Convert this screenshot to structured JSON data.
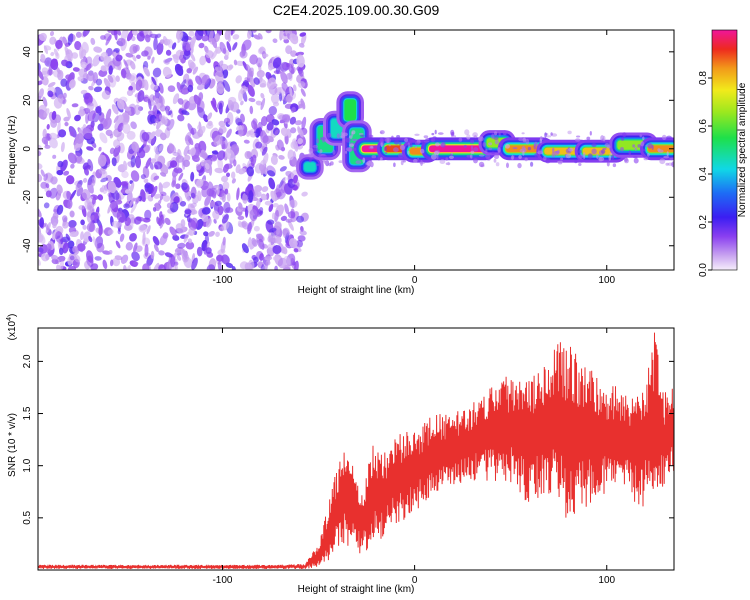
{
  "title": "C2E4.2025.109.00.30.G09",
  "chart_data": [
    {
      "type": "heatmap",
      "xlabel": "Height of straight line (km)",
      "ylabel": "Frequency (Hz)",
      "xlim": [
        -196,
        135
      ],
      "ylim": [
        -50,
        49
      ],
      "x_ticks": [
        -100,
        0,
        100
      ],
      "y_ticks": [
        -40,
        -20,
        0,
        20,
        40
      ],
      "colorbar": {
        "label": "Normalized spectral amplitude",
        "range": [
          0,
          1
        ],
        "ticks": [
          0.0,
          0.2,
          0.4,
          0.6,
          0.8
        ]
      },
      "noise_region_x": [
        -196,
        -57
      ],
      "signal_segments": [
        {
          "x": [
            -57,
            -52
          ],
          "freq": [
            -9,
            -6
          ],
          "amp": 0.45
        },
        {
          "x": [
            -50,
            -43
          ],
          "freq": [
            -1,
            9
          ],
          "amp": 0.5
        },
        {
          "x": [
            -43,
            -36
          ],
          "freq": [
            5,
            12
          ],
          "amp": 0.45
        },
        {
          "x": [
            -36,
            -31
          ],
          "freq": [
            12,
            20
          ],
          "amp": 0.55
        },
        {
          "x": [
            -33,
            -27
          ],
          "freq": [
            -6,
            8
          ],
          "amp": 0.5
        },
        {
          "x": [
            -27,
            -15
          ],
          "freq": [
            -1,
            1
          ],
          "amp": 1.0
        },
        {
          "x": [
            -15,
            -2
          ],
          "freq": [
            -1,
            1
          ],
          "amp": 0.9
        },
        {
          "x": [
            -2,
            8
          ],
          "freq": [
            -2,
            0
          ],
          "amp": 0.85
        },
        {
          "x": [
            8,
            38
          ],
          "freq": [
            -1,
            1
          ],
          "amp": 1.0
        },
        {
          "x": [
            38,
            48
          ],
          "freq": [
            1,
            4
          ],
          "amp": 0.65
        },
        {
          "x": [
            48,
            68
          ],
          "freq": [
            -1,
            1
          ],
          "amp": 0.85
        },
        {
          "x": [
            68,
            88
          ],
          "freq": [
            -2,
            0
          ],
          "amp": 0.8
        },
        {
          "x": [
            88,
            106
          ],
          "freq": [
            -2,
            0
          ],
          "amp": 0.8
        },
        {
          "x": [
            106,
            122
          ],
          "freq": [
            0,
            3
          ],
          "amp": 0.65
        },
        {
          "x": [
            122,
            135
          ],
          "freq": [
            -1,
            1
          ],
          "amp": 0.85
        }
      ]
    },
    {
      "type": "line",
      "xlabel": "Height of straight line (km)",
      "ylabel": "SNR (10 * v/v)",
      "y_multiplier": "(x10",
      "y_multiplier_exp": "4",
      "y_multiplier_close": ")",
      "xlim": [
        -196,
        135
      ],
      "ylim": [
        0,
        2.32
      ],
      "x_ticks": [
        -100,
        0,
        100
      ],
      "y_ticks": [
        0.5,
        1.0,
        1.5,
        2.0
      ],
      "color": "#e8302e",
      "envelope": [
        {
          "x": -196,
          "lo": 0.01,
          "hi": 0.05
        },
        {
          "x": -70,
          "lo": 0.01,
          "hi": 0.05
        },
        {
          "x": -57,
          "lo": 0.01,
          "hi": 0.06
        },
        {
          "x": -50,
          "lo": 0.03,
          "hi": 0.25
        },
        {
          "x": -44,
          "lo": 0.1,
          "hi": 0.7
        },
        {
          "x": -37,
          "lo": 0.25,
          "hi": 1.25
        },
        {
          "x": -32,
          "lo": 0.2,
          "hi": 1.0
        },
        {
          "x": -28,
          "lo": 0.15,
          "hi": 0.7
        },
        {
          "x": -22,
          "lo": 0.2,
          "hi": 1.2
        },
        {
          "x": -15,
          "lo": 0.35,
          "hi": 1.15
        },
        {
          "x": -8,
          "lo": 0.45,
          "hi": 1.3
        },
        {
          "x": 0,
          "lo": 0.55,
          "hi": 1.35
        },
        {
          "x": 10,
          "lo": 0.7,
          "hi": 1.5
        },
        {
          "x": 20,
          "lo": 0.8,
          "hi": 1.5
        },
        {
          "x": 30,
          "lo": 0.85,
          "hi": 1.6
        },
        {
          "x": 40,
          "lo": 0.85,
          "hi": 1.8
        },
        {
          "x": 50,
          "lo": 0.8,
          "hi": 1.9
        },
        {
          "x": 60,
          "lo": 0.6,
          "hi": 1.95
        },
        {
          "x": 70,
          "lo": 0.7,
          "hi": 2.1
        },
        {
          "x": 80,
          "lo": 0.45,
          "hi": 2.25
        },
        {
          "x": 90,
          "lo": 0.6,
          "hi": 1.95
        },
        {
          "x": 100,
          "lo": 0.75,
          "hi": 1.8
        },
        {
          "x": 110,
          "lo": 0.7,
          "hi": 1.75
        },
        {
          "x": 118,
          "lo": 0.6,
          "hi": 1.7
        },
        {
          "x": 125,
          "lo": 0.65,
          "hi": 2.3
        },
        {
          "x": 130,
          "lo": 0.8,
          "hi": 1.7
        },
        {
          "x": 135,
          "lo": 0.9,
          "hi": 1.75
        }
      ]
    }
  ]
}
